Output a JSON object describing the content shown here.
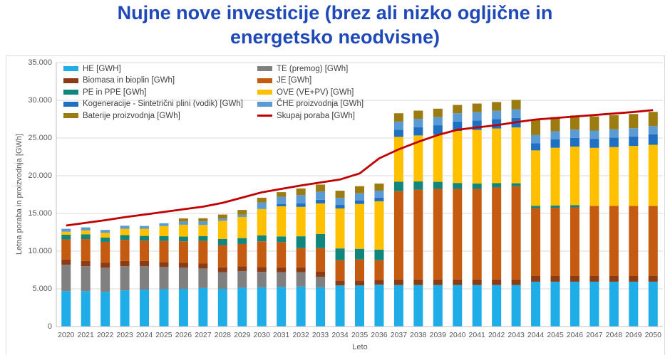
{
  "title": {
    "line1": "Nujne nove investicije (brez ali nizko ogljične in",
    "line2": "energetsko neodvisne)"
  },
  "chart_data": {
    "type": "bar",
    "subtype": "stacked-bars-with-total-line",
    "x": [
      2020,
      2021,
      2022,
      2023,
      2024,
      2025,
      2026,
      2027,
      2028,
      2029,
      2030,
      2031,
      2032,
      2033,
      2034,
      2035,
      2036,
      2037,
      2038,
      2039,
      2040,
      2041,
      2042,
      2043,
      2044,
      2045,
      2046,
      2047,
      2048,
      2049,
      2050
    ],
    "xlabel": "Leto",
    "ylabel": "Letna poraba in proizvodnja [GWh]",
    "ylim": [
      0,
      35000
    ],
    "y_tick_interval": 5000,
    "y_tick_labels_top_down": [
      "35.000",
      "30.000",
      "25.000",
      "20.000",
      "15.000",
      "10.000",
      "5.000",
      "0"
    ],
    "grid": true,
    "legend_position": "top-left-inside",
    "series": [
      {
        "name": "HE [GWH]",
        "color": "#1FADE8",
        "values": [
          4700,
          4700,
          4600,
          4800,
          4900,
          4950,
          5000,
          5100,
          5000,
          5150,
          5200,
          5250,
          5300,
          5200,
          5450,
          5450,
          5550,
          5500,
          5500,
          5500,
          5500,
          5500,
          5500,
          5500,
          5950,
          5950,
          5950,
          5950,
          5950,
          5950,
          5950
        ]
      },
      {
        "name": "TE (premog) [GWh]",
        "color": "#808080",
        "values": [
          3500,
          3300,
          3200,
          3200,
          3100,
          2950,
          2800,
          2600,
          2200,
          2200,
          2050,
          1950,
          1900,
          1400,
          0,
          0,
          0,
          0,
          0,
          0,
          0,
          0,
          0,
          0,
          0,
          0,
          0,
          0,
          0,
          0,
          0
        ]
      },
      {
        "name": "Biomasa in bioplin [GWh]",
        "color": "#8C3C14",
        "values": [
          700,
          700,
          680,
          700,
          700,
          650,
          650,
          650,
          650,
          650,
          650,
          650,
          650,
          700,
          650,
          650,
          650,
          750,
          750,
          750,
          750,
          750,
          750,
          750,
          750,
          750,
          750,
          750,
          750,
          750,
          750
        ]
      },
      {
        "name": "JE [GWh]",
        "color": "#C55A11",
        "values": [
          2650,
          2900,
          2750,
          2800,
          2700,
          2800,
          2850,
          3000,
          2950,
          2950,
          3400,
          3350,
          2550,
          3100,
          2700,
          2800,
          2600,
          11700,
          11900,
          12000,
          12000,
          12000,
          12200,
          12350,
          9000,
          9050,
          9100,
          9300,
          9300,
          9300,
          9300
        ]
      },
      {
        "name": "PE in PPE [GWh]",
        "color": "#11867C",
        "values": [
          620,
          620,
          570,
          620,
          620,
          630,
          630,
          630,
          820,
          780,
          780,
          750,
          1570,
          1880,
          1560,
          1410,
          1410,
          1250,
          1090,
          940,
          790,
          720,
          560,
          400,
          310,
          310,
          310,
          0,
          0,
          0,
          0
        ]
      },
      {
        "name": "OVE (VE+PV) [GWh]",
        "color": "#FFC000",
        "values": [
          410,
          530,
          630,
          840,
          940,
          1340,
          1570,
          1500,
          2400,
          2800,
          3500,
          4000,
          3900,
          4050,
          5300,
          5950,
          6400,
          5950,
          6100,
          6250,
          6900,
          7100,
          7250,
          7400,
          7350,
          7650,
          7750,
          7700,
          7800,
          7950,
          8100
        ]
      },
      {
        "name": "Kogeneracije - Sintetrični plini (vodik) [GWh]",
        "color": "#1F6FC2",
        "values": [
          0,
          0,
          0,
          0,
          0,
          0,
          0,
          0,
          0,
          0,
          0,
          300,
          470,
          470,
          470,
          470,
          470,
          940,
          1100,
          1250,
          1250,
          1250,
          1260,
          1250,
          940,
          1100,
          1150,
          1190,
          1260,
          1250,
          1400
        ]
      },
      {
        "name": "ČHE proizvodnja [GWh]",
        "color": "#5B9BD5",
        "values": [
          380,
          400,
          380,
          410,
          380,
          380,
          430,
          470,
          300,
          300,
          870,
          940,
          1100,
          1090,
          940,
          940,
          940,
          1090,
          1100,
          1100,
          1100,
          1100,
          1090,
          1160,
          1090,
          1090,
          1100,
          1100,
          1090,
          1100,
          1090
        ]
      },
      {
        "name": "Baterije proizvodnja [GWh]",
        "color": "#9C7B10",
        "values": [
          0,
          0,
          0,
          0,
          0,
          0,
          410,
          410,
          530,
          630,
          630,
          630,
          870,
          940,
          940,
          940,
          940,
          1100,
          1090,
          1100,
          1100,
          1150,
          1160,
          1250,
          2030,
          1880,
          1880,
          1880,
          1880,
          1880,
          1880
        ]
      }
    ],
    "line": {
      "name": "Skupaj poraba [GWh]",
      "color": "#C00000",
      "values": [
        13400,
        13750,
        14100,
        14500,
        14850,
        15200,
        15550,
        15900,
        16400,
        17100,
        17800,
        18250,
        18700,
        19100,
        19500,
        20300,
        22300,
        23500,
        24500,
        25400,
        26100,
        26400,
        26700,
        27100,
        27450,
        27650,
        27850,
        28050,
        28250,
        28450,
        28700
      ]
    }
  },
  "colors": {
    "title": "#1F49B8",
    "gridline": "#D9D9D9",
    "axis_line": "#BFBFBF",
    "tick_text": "#595959",
    "legend_text": "#404040",
    "background": "#FFFFFF"
  }
}
